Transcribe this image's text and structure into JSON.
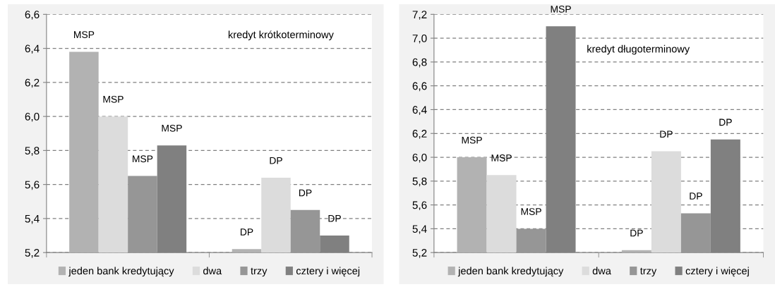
{
  "chart_data": [
    {
      "type": "bar",
      "categories": [
        null,
        null
      ],
      "ylim": [
        5.2,
        6.6
      ],
      "yticks": [
        {
          "value": 5.2,
          "label": "5,2"
        },
        {
          "value": 5.4,
          "label": "5,4"
        },
        {
          "value": 5.6,
          "label": "5,6"
        },
        {
          "value": 5.8,
          "label": "5,8"
        },
        {
          "value": 6.0,
          "label": "6,0"
        },
        {
          "value": 6.2,
          "label": "6,2"
        },
        {
          "value": 6.4,
          "label": "6,4"
        },
        {
          "value": 6.6,
          "label": "6,6"
        }
      ],
      "grid": "y",
      "legend": "bottom",
      "annotations": [
        "kredyt krótkoterminowy"
      ],
      "series": [
        {
          "name": "jeden bank kredytujący",
          "color": "#b2b2b2",
          "values": [
            6.38,
            5.22
          ],
          "value_labels": [
            "MSP",
            "DP"
          ]
        },
        {
          "name": "dwa",
          "color": "#dcdcdc",
          "values": [
            6.0,
            5.64
          ],
          "value_labels": [
            "MSP",
            "DP"
          ]
        },
        {
          "name": "trzy",
          "color": "#969696",
          "values": [
            5.65,
            5.45
          ],
          "value_labels": [
            "MSP",
            "DP"
          ]
        },
        {
          "name": "cztery i więcej",
          "color": "#808080",
          "values": [
            5.83,
            5.3
          ],
          "value_labels": [
            "MSP",
            "DP"
          ]
        }
      ]
    },
    {
      "type": "bar",
      "categories": [
        null,
        null
      ],
      "ylim": [
        5.2,
        7.2
      ],
      "yticks": [
        {
          "value": 5.2,
          "label": "5,2"
        },
        {
          "value": 5.4,
          "label": "5,4"
        },
        {
          "value": 5.6,
          "label": "5,6"
        },
        {
          "value": 5.8,
          "label": "5,8"
        },
        {
          "value": 6.0,
          "label": "6,0"
        },
        {
          "value": 6.2,
          "label": "6,2"
        },
        {
          "value": 6.4,
          "label": "6,4"
        },
        {
          "value": 6.6,
          "label": "6,6"
        },
        {
          "value": 6.8,
          "label": "6,8"
        },
        {
          "value": 7.0,
          "label": "7,0"
        },
        {
          "value": 7.2,
          "label": "7,2"
        }
      ],
      "grid": "y",
      "legend": "bottom",
      "annotations": [
        "kredyt długoterminowy"
      ],
      "series": [
        {
          "name": "jeden bank kredytujący",
          "color": "#b2b2b2",
          "values": [
            6.0,
            5.22
          ],
          "value_labels": [
            "MSP",
            "DP"
          ]
        },
        {
          "name": "dwa",
          "color": "#dcdcdc",
          "values": [
            5.85,
            6.05
          ],
          "value_labels": [
            "MSP",
            "DP"
          ]
        },
        {
          "name": "trzy",
          "color": "#969696",
          "values": [
            5.4,
            5.53
          ],
          "value_labels": [
            "MSP",
            "DP"
          ]
        },
        {
          "name": "cztery i więcej",
          "color": "#808080",
          "values": [
            7.1,
            6.15
          ],
          "value_labels": [
            "MSP",
            "DP"
          ]
        }
      ]
    }
  ]
}
